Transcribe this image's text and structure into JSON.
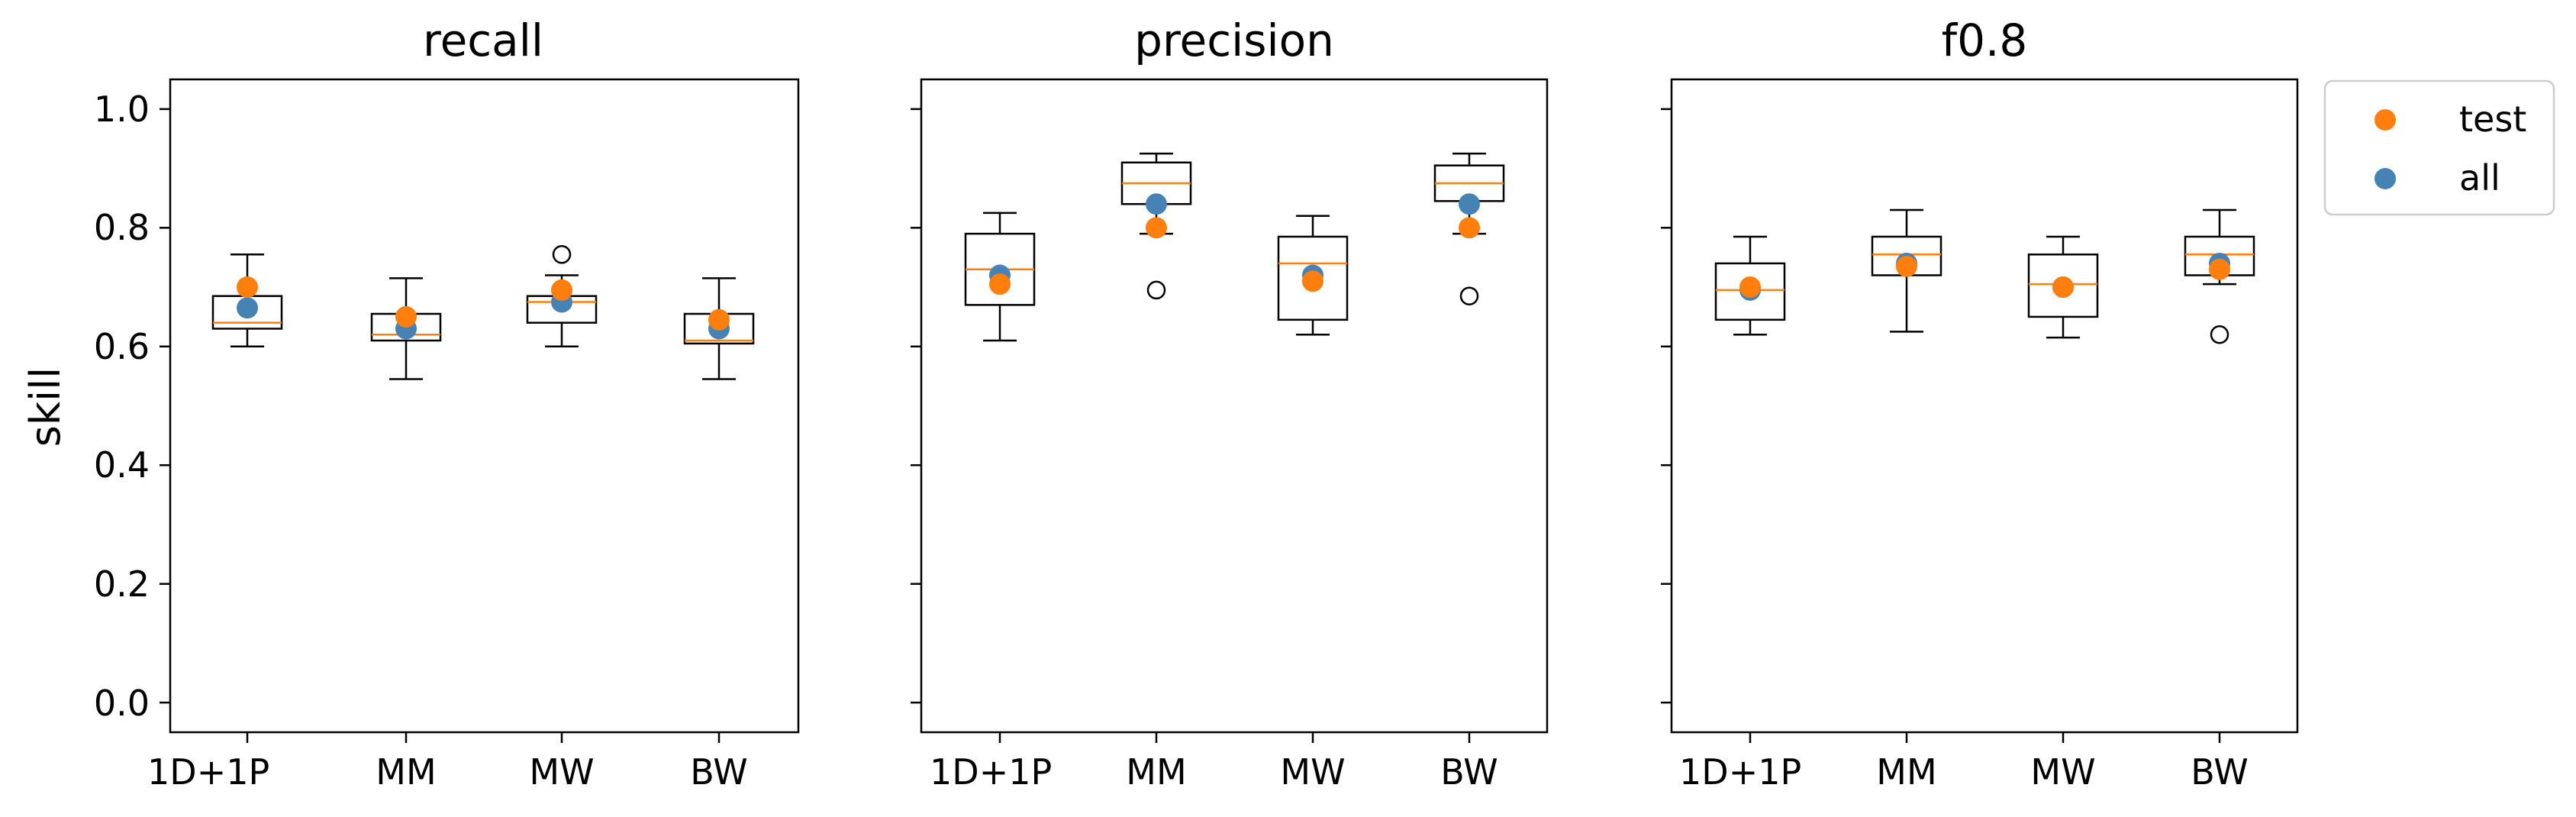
{
  "chart_data": [
    {
      "type": "box",
      "title": "recall",
      "ylabel": "skill",
      "categories": [
        "1D+1P",
        "MM",
        "MW",
        "BW"
      ],
      "ylim": [
        -0.05,
        1.05
      ],
      "yticks": [
        "0.0",
        "0.2",
        "0.4",
        "0.6",
        "0.8",
        "1.0"
      ],
      "boxes": [
        {
          "whislo": 0.6,
          "q1": 0.63,
          "med": 0.64,
          "q3": 0.685,
          "whishi": 0.755,
          "fliers": []
        },
        {
          "whislo": 0.545,
          "q1": 0.61,
          "med": 0.62,
          "q3": 0.655,
          "whishi": 0.715,
          "fliers": []
        },
        {
          "whislo": 0.6,
          "q1": 0.64,
          "med": 0.675,
          "q3": 0.685,
          "whishi": 0.72,
          "fliers": [
            0.755
          ]
        },
        {
          "whislo": 0.545,
          "q1": 0.605,
          "med": 0.61,
          "q3": 0.655,
          "whishi": 0.715,
          "fliers": []
        }
      ],
      "points": {
        "all": [
          0.665,
          0.63,
          0.675,
          0.63
        ],
        "test": [
          0.7,
          0.65,
          0.695,
          0.645
        ]
      }
    },
    {
      "type": "box",
      "title": "precision",
      "categories": [
        "1D+1P",
        "MM",
        "MW",
        "BW"
      ],
      "ylim": [
        -0.05,
        1.05
      ],
      "boxes": [
        {
          "whislo": 0.61,
          "q1": 0.67,
          "med": 0.73,
          "q3": 0.79,
          "whishi": 0.825,
          "fliers": []
        },
        {
          "whislo": 0.79,
          "q1": 0.84,
          "med": 0.875,
          "q3": 0.91,
          "whishi": 0.925,
          "fliers": [
            0.695
          ]
        },
        {
          "whislo": 0.62,
          "q1": 0.645,
          "med": 0.74,
          "q3": 0.785,
          "whishi": 0.82,
          "fliers": []
        },
        {
          "whislo": 0.79,
          "q1": 0.845,
          "med": 0.875,
          "q3": 0.905,
          "whishi": 0.925,
          "fliers": [
            0.685
          ]
        }
      ],
      "points": {
        "all": [
          0.72,
          0.84,
          0.72,
          0.84
        ],
        "test": [
          0.705,
          0.8,
          0.71,
          0.8
        ]
      }
    },
    {
      "type": "box",
      "title": "f0.8",
      "categories": [
        "1D+1P",
        "MM",
        "MW",
        "BW"
      ],
      "ylim": [
        -0.05,
        1.05
      ],
      "boxes": [
        {
          "whislo": 0.62,
          "q1": 0.645,
          "med": 0.695,
          "q3": 0.74,
          "whishi": 0.785,
          "fliers": []
        },
        {
          "whislo": 0.625,
          "q1": 0.72,
          "med": 0.755,
          "q3": 0.785,
          "whishi": 0.83,
          "fliers": []
        },
        {
          "whislo": 0.615,
          "q1": 0.65,
          "med": 0.705,
          "q3": 0.755,
          "whishi": 0.785,
          "fliers": []
        },
        {
          "whislo": 0.705,
          "q1": 0.72,
          "med": 0.755,
          "q3": 0.785,
          "whishi": 0.83,
          "fliers": [
            0.62
          ]
        }
      ],
      "points": {
        "all": [
          0.695,
          0.74,
          0.7,
          0.74
        ],
        "test": [
          0.7,
          0.735,
          0.7,
          0.73
        ]
      }
    }
  ],
  "legend": {
    "placement": "upper-right-outside",
    "entries": [
      {
        "key": "test",
        "label": "test",
        "color": "#ff7f0e"
      },
      {
        "key": "all",
        "label": "all",
        "color": "#4682b4"
      }
    ]
  },
  "colors": {
    "median": "#ff7f0e",
    "test": "#ff7f0e",
    "all": "#4682b4",
    "box": "#000000"
  }
}
